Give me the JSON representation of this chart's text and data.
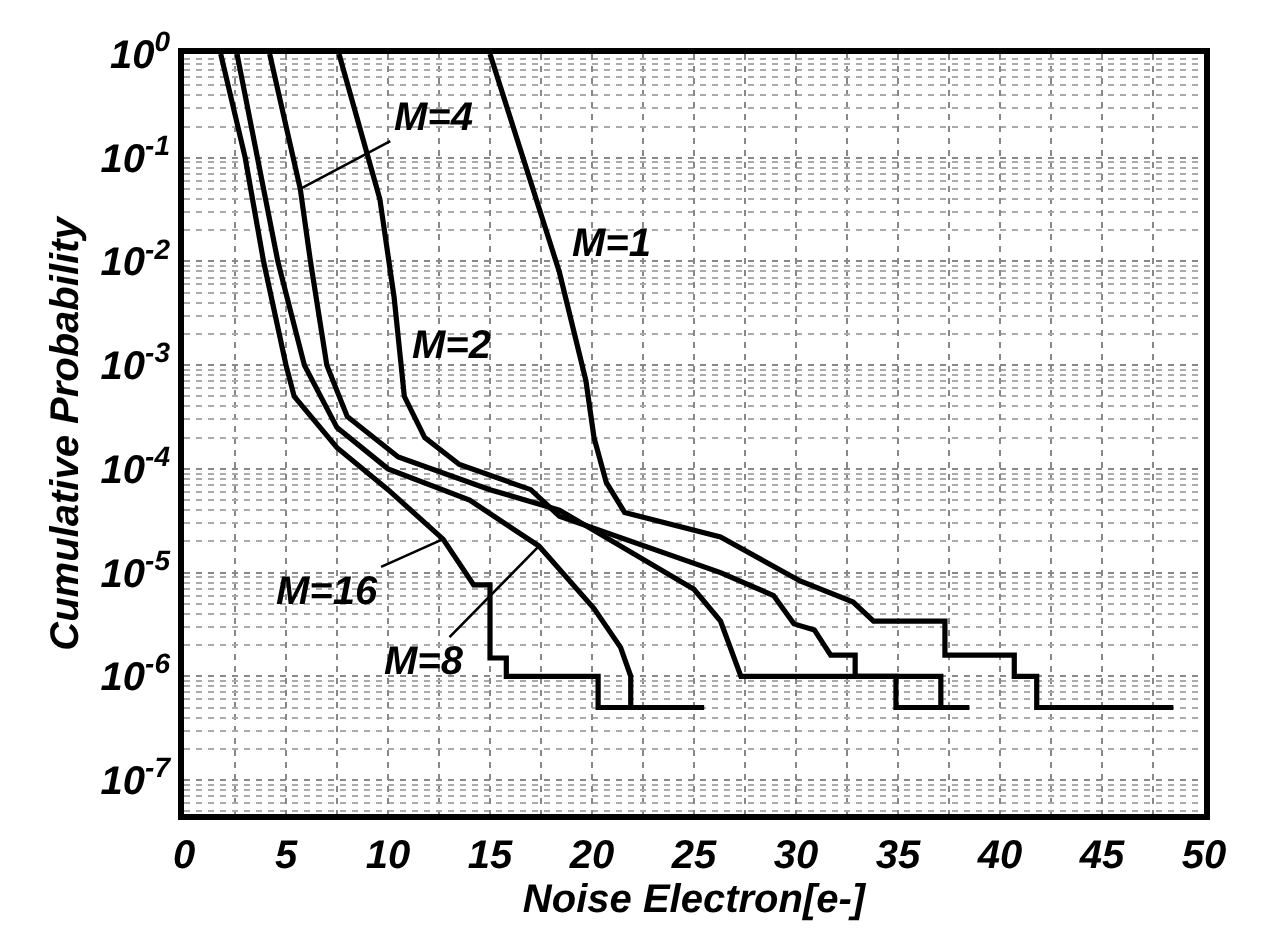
{
  "chart_data": {
    "type": "line",
    "xlabel": "Noise Electron[e-]",
    "ylabel": "Cumulative Probability",
    "log": "y",
    "grid": true,
    "marker": "none",
    "line_style": "solid",
    "xlim": [
      0,
      50
    ],
    "xticks": [
      0,
      5,
      10,
      15,
      20,
      25,
      30,
      35,
      40,
      45,
      50
    ],
    "ylim": [
      4.7e-08,
      1
    ],
    "yticks": [
      {
        "value": 1,
        "label": "10$^{0}$"
      },
      {
        "value": 0.1,
        "label": "10$^{-1}$"
      },
      {
        "value": 0.01,
        "label": "10$^{-2}$"
      },
      {
        "value": 0.001,
        "label": "10$^{-3}$"
      },
      {
        "value": 0.0001,
        "label": "10$^{-4}$"
      },
      {
        "value": 1e-05,
        "label": "10$^{-5}$"
      },
      {
        "value": 1e-06,
        "label": "10$^{-6}$"
      },
      {
        "value": 1e-07,
        "label": "10$^{-7}$"
      }
    ],
    "series": [
      {
        "color": "#000000",
        "x": [
          15,
          16.7,
          18.4,
          19.7,
          20.1,
          20.7,
          21.6,
          26.3,
          30.2,
          32.8,
          33.8,
          37.3,
          37.3,
          40.7,
          40.7,
          41.8,
          41.8,
          48.5
        ],
        "values": [
          1,
          0.089,
          0.0079,
          0.00071,
          0.0002,
          7.4e-05,
          3.8e-05,
          2.2e-05,
          8.3e-06,
          5.2e-06,
          3.4e-06,
          3.4e-06,
          1.6e-06,
          1.6e-06,
          1e-06,
          1e-06,
          5e-07,
          5e-07
        ]
      },
      {
        "color": "#000000",
        "x": [
          7.6,
          9.6,
          10.3,
          10.8,
          11.8,
          13.5,
          17,
          18.4,
          26.3,
          28.9,
          29.9,
          30.9,
          31.7,
          32.9,
          32.9,
          34.9,
          34.9,
          37.1
        ],
        "values": [
          1,
          0.04,
          0.0045,
          0.0005,
          0.0002,
          0.00011,
          6.3e-05,
          3.5e-05,
          1e-05,
          6e-06,
          3.2e-06,
          2.8e-06,
          1.6e-06,
          1.6e-06,
          1e-06,
          1e-06,
          5e-07,
          5e-07
        ]
      },
      {
        "color": "#000000",
        "x": [
          4.2,
          5.7,
          6.2,
          7.0,
          8.0,
          10.5,
          15,
          18.4,
          25,
          26.3,
          27.3,
          37.1,
          37.1,
          38.5
        ],
        "values": [
          1,
          0.05,
          0.01,
          0.001,
          0.00032,
          0.00013,
          6.3e-05,
          4e-05,
          6.9e-06,
          3.4e-06,
          1e-06,
          1e-06,
          5e-07,
          5e-07
        ]
      },
      {
        "color": "#000000",
        "x": [
          2.6,
          3.6,
          4.6,
          5.9,
          7.5,
          10,
          14,
          17.4,
          20.1,
          21.4,
          21.9,
          21.9,
          22.5
        ],
        "values": [
          1,
          0.1,
          0.01,
          0.001,
          0.00025,
          0.0001,
          5e-05,
          1.8e-05,
          4.5e-06,
          1.9e-06,
          1e-06,
          5e-07,
          5e-07
        ]
      },
      {
        "color": "#000000",
        "x": [
          1.8,
          3.0,
          3.9,
          5.0,
          5.4,
          7.5,
          10,
          12.7,
          14.2,
          15.0,
          15.0,
          15.8,
          15.8,
          19.1,
          19.1,
          20.3,
          20.3,
          25.5
        ],
        "values": [
          1,
          0.1,
          0.01,
          0.001,
          0.0005,
          0.00016,
          6.3e-05,
          2.1e-05,
          7.6e-06,
          7.6e-06,
          1.5e-06,
          1.5e-06,
          1e-06,
          1e-06,
          1e-06,
          1e-06,
          5e-07,
          5e-07
        ]
      }
    ],
    "annotations": [
      {
        "text": "M=1",
        "x": 17.9,
        "y": 0.015
      },
      {
        "text": "M=2",
        "x": 10.55,
        "y": 0.0015
      },
      {
        "text": "M=4",
        "x": 5.7,
        "y": 0.05
      },
      {
        "text": "M=8",
        "x": 17.4,
        "y": 1.8e-05
      },
      {
        "text": "M=16",
        "x": 12.7,
        "y": 2.1e-05
      }
    ]
  }
}
